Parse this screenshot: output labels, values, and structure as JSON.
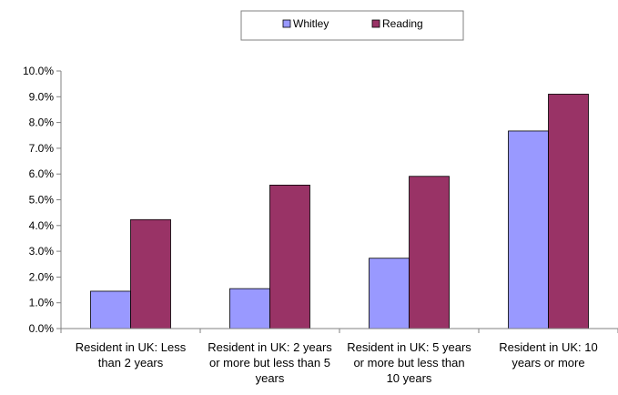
{
  "chart_data": {
    "type": "bar",
    "title": "",
    "xlabel": "",
    "ylabel": "",
    "categories": [
      "Resident in UK: Less than 2 years",
      "Resident in UK: 2 years or more but less than 5 years",
      "Resident in UK: 5 years or more but less than 10 years",
      "Resident in UK: 10 years or more"
    ],
    "category_label_lines": [
      [
        "Resident in UK: Less",
        "than 2 years"
      ],
      [
        "Resident in UK: 2 years",
        "or more but less than 5",
        "years"
      ],
      [
        "Resident in UK: 5 years",
        "or more but less than",
        "10 years"
      ],
      [
        "Resident in UK: 10",
        "years or more"
      ]
    ],
    "series": [
      {
        "name": "Whitley",
        "color": "#9999ff",
        "values": [
          1.45,
          1.55,
          2.73,
          7.67
        ]
      },
      {
        "name": "Reading",
        "color": "#993366",
        "values": [
          4.23,
          5.57,
          5.91,
          9.1
        ]
      }
    ],
    "ylim": [
      0,
      10
    ],
    "yticks": [
      0,
      1,
      2,
      3,
      4,
      5,
      6,
      7,
      8,
      9,
      10
    ],
    "ytick_labels": [
      "0.0%",
      "1.0%",
      "2.0%",
      "3.0%",
      "4.0%",
      "5.0%",
      "6.0%",
      "7.0%",
      "8.0%",
      "9.0%",
      "10.0%"
    ],
    "grid": false,
    "legend": {
      "position": "top",
      "entries": [
        "Whitley",
        "Reading"
      ]
    }
  }
}
